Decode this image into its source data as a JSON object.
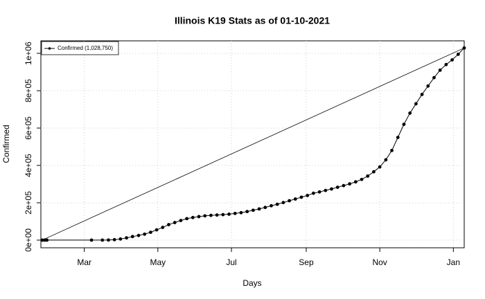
{
  "chart_data": {
    "type": "line",
    "title": "Illinois K19 Stats as of 01-10-2021",
    "xlabel": "Days",
    "ylabel": "Confirmed",
    "legend": {
      "text": "Confirmed (1,028,750)",
      "position": "topleft"
    },
    "grid": true,
    "xlim": [
      24,
      375
    ],
    "ylim": [
      -41000,
      1067000
    ],
    "xticks": [
      {
        "value": 60,
        "label": "Mar"
      },
      {
        "value": 121,
        "label": "May"
      },
      {
        "value": 182,
        "label": "Jul"
      },
      {
        "value": 244,
        "label": "Sep"
      },
      {
        "value": 305,
        "label": "Nov"
      },
      {
        "value": 366,
        "label": "Jan"
      }
    ],
    "yticks": [
      {
        "value": 0,
        "label": "0e+00"
      },
      {
        "value": 200000,
        "label": "2e+05"
      },
      {
        "value": 400000,
        "label": "4e+05"
      },
      {
        "value": 600000,
        "label": "6e+05"
      },
      {
        "value": 800000,
        "label": "8e+05"
      },
      {
        "value": 1000000,
        "label": "1e+06"
      }
    ],
    "series": [
      {
        "name": "Confirmed",
        "color": "#000000",
        "x": [
          25,
          27,
          29,
          66,
          75,
          80,
          85,
          90,
          95,
          100,
          105,
          110,
          115,
          120,
          125,
          130,
          135,
          140,
          145,
          150,
          155,
          160,
          165,
          170,
          175,
          180,
          185,
          190,
          195,
          200,
          205,
          210,
          215,
          220,
          225,
          230,
          235,
          240,
          245,
          250,
          255,
          260,
          265,
          270,
          275,
          280,
          285,
          290,
          295,
          300,
          305,
          310,
          315,
          320,
          325,
          330,
          335,
          340,
          345,
          350,
          355,
          360,
          365,
          370,
          375
        ],
        "values": [
          0,
          0,
          0,
          0,
          100,
          600,
          2500,
          6000,
          12000,
          19000,
          25000,
          32000,
          42000,
          55000,
          68000,
          83000,
          94000,
          105000,
          115000,
          121000,
          126000,
          130000,
          132500,
          134500,
          136500,
          139000,
          143000,
          147000,
          153000,
          160000,
          167000,
          175000,
          184000,
          192000,
          201000,
          211000,
          220000,
          230000,
          239000,
          251000,
          258000,
          266000,
          274000,
          283000,
          292000,
          301000,
          312000,
          325000,
          343000,
          366000,
          392000,
          430000,
          480000,
          550000,
          620000,
          680000,
          730000,
          780000,
          825000,
          870000,
          910000,
          940000,
          965000,
          995000,
          1028750
        ]
      }
    ]
  }
}
